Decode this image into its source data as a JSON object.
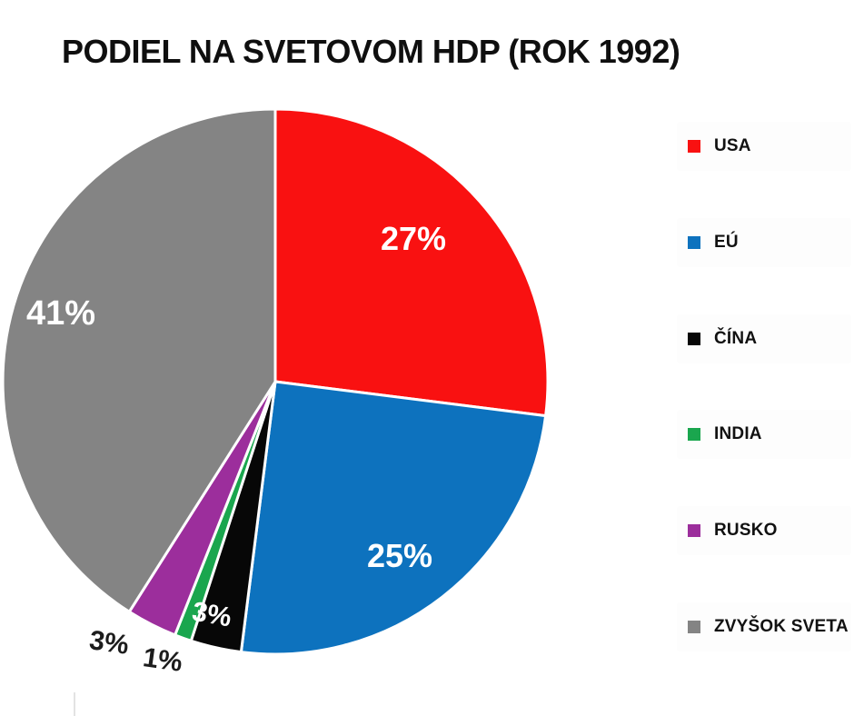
{
  "title": "PODIEL NA SVETOVOM HDP (ROK 1992)",
  "unit": "%",
  "chart_data": {
    "type": "pie",
    "title": "PODIEL NA SVETOVOM HDP (ROK 1992)",
    "categories": [
      "USA",
      "EÚ",
      "ČÍNA",
      "INDIA",
      "RUSKO",
      "ZVYŠOK SVETA"
    ],
    "values": [
      27,
      25,
      3,
      1,
      3,
      41
    ],
    "unit": "%",
    "colors": [
      "#f91111",
      "#0d72be",
      "#070707",
      "#1aa64e",
      "#9c2e9c",
      "#848484"
    ],
    "slice_label_colors": [
      "#ffffff",
      "#ffffff",
      "#ffffff",
      "#1c1c1c",
      "#1c1c1c",
      "#ffffff"
    ],
    "slice_labels": [
      "27%",
      "25%",
      "3%",
      "1%",
      "3%",
      "41%"
    ],
    "start_angle_deg": 0,
    "direction": "clockwise",
    "legend_position": "right",
    "legend_items": [
      {
        "label": "USA",
        "color": "#f91111"
      },
      {
        "label": "EÚ",
        "color": "#0d72be"
      },
      {
        "label": "ČÍNA",
        "color": "#070707"
      },
      {
        "label": "INDIA",
        "color": "#1aa64e"
      },
      {
        "label": "RUSKO",
        "color": "#9c2e9c"
      },
      {
        "label": "ZVYŠOK SVETA",
        "color": "#848484"
      }
    ]
  }
}
